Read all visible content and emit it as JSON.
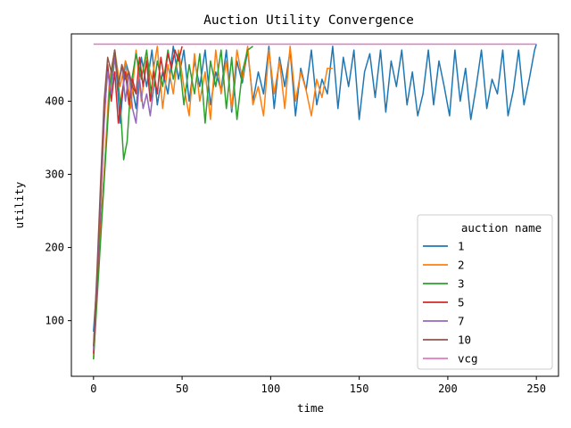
{
  "chart_data": {
    "type": "line",
    "title": "Auction Utility Convergence",
    "xlabel": "time",
    "ylabel": "utility",
    "xlim": [
      -12.5,
      262.5
    ],
    "ylim": [
      24,
      492
    ],
    "x_ticks": [
      0,
      50,
      100,
      150,
      200,
      250
    ],
    "y_ticks": [
      100,
      200,
      300,
      400
    ],
    "grid": false,
    "legend_title": "auction name",
    "legend_position": "lower right",
    "series": [
      {
        "name": "1",
        "color": "#1f77b4",
        "x": [
          0,
          3,
          6,
          9,
          12,
          15,
          18,
          21,
          24,
          27,
          30,
          33,
          36,
          39,
          42,
          45,
          48,
          51,
          54,
          57,
          60,
          63,
          66,
          69,
          72,
          75,
          78,
          81,
          84,
          87,
          90,
          93,
          96,
          99,
          102,
          105,
          108,
          111,
          114,
          117,
          120,
          123,
          126,
          129,
          132,
          135,
          138,
          141,
          144,
          147,
          150,
          153,
          156,
          159,
          162,
          165,
          168,
          171,
          174,
          177,
          180,
          183,
          186,
          189,
          192,
          195,
          198,
          201,
          204,
          207,
          210,
          213,
          216,
          219,
          222,
          225,
          228,
          231,
          234,
          237,
          240,
          243,
          246,
          249,
          250
        ],
        "y": [
          85,
          190,
          300,
          420,
          470,
          370,
          455,
          430,
          390,
          460,
          420,
          470,
          395,
          440,
          410,
          475,
          430,
          470,
          400,
          455,
          420,
          470,
          395,
          440,
          415,
          470,
          385,
          455,
          425,
          470,
          400,
          440,
          410,
          475,
          390,
          460,
          420,
          470,
          380,
          445,
          415,
          470,
          395,
          430,
          410,
          475,
          390,
          460,
          420,
          470,
          375,
          440,
          465,
          405,
          470,
          385,
          455,
          420,
          470,
          395,
          440,
          380,
          410,
          470,
          395,
          455,
          420,
          380,
          470,
          400,
          445,
          375,
          420,
          470,
          390,
          430,
          410,
          470,
          380,
          415,
          470,
          395,
          430,
          470,
          478
        ]
      },
      {
        "name": "2",
        "color": "#ff7f0e",
        "x": [
          0,
          3,
          6,
          9,
          12,
          15,
          18,
          21,
          24,
          27,
          30,
          33,
          36,
          39,
          42,
          45,
          48,
          51,
          54,
          57,
          60,
          63,
          66,
          69,
          72,
          75,
          78,
          81,
          84,
          87,
          90,
          93,
          96,
          99,
          102,
          105,
          108,
          111,
          114,
          117,
          120,
          123,
          126,
          129,
          132,
          135
        ],
        "y": [
          48,
          180,
          300,
          430,
          470,
          420,
          455,
          390,
          470,
          400,
          460,
          430,
          475,
          390,
          450,
          410,
          470,
          420,
          380,
          465,
          400,
          440,
          375,
          470,
          410,
          455,
          390,
          470,
          430,
          475,
          395,
          420,
          380,
          470,
          410,
          455,
          390,
          475,
          400,
          440,
          415,
          380,
          430,
          405,
          445,
          445
        ]
      },
      {
        "name": "3",
        "color": "#2ca02c",
        "x": [
          0,
          3,
          6,
          9,
          12,
          15,
          17,
          19,
          21,
          24,
          27,
          30,
          33,
          36,
          39,
          42,
          45,
          48,
          51,
          54,
          57,
          60,
          63,
          66,
          69,
          72,
          75,
          78,
          81,
          84,
          87,
          90
        ],
        "y": [
          47,
          170,
          290,
          410,
          470,
          400,
          320,
          345,
          420,
          465,
          430,
          470,
          400,
          455,
          420,
          470,
          430,
          465,
          395,
          450,
          410,
          465,
          370,
          455,
          420,
          470,
          390,
          460,
          375,
          440,
          470,
          475
        ]
      },
      {
        "name": "5",
        "color": "#d62728",
        "x": [
          0,
          2,
          4,
          6,
          8,
          10,
          12,
          14,
          16,
          18,
          20,
          22,
          24,
          26,
          28,
          30,
          32,
          34,
          36,
          38,
          40,
          42,
          44,
          46,
          48,
          50
        ],
        "y": [
          55,
          150,
          260,
          370,
          450,
          400,
          440,
          370,
          410,
          440,
          395,
          430,
          410,
          460,
          420,
          455,
          400,
          440,
          410,
          460,
          430,
          465,
          445,
          470,
          455,
          475
        ]
      },
      {
        "name": "7",
        "color": "#9467bd",
        "x": [
          0,
          2,
          4,
          6,
          8,
          10,
          12,
          14,
          16,
          18,
          20,
          22,
          24,
          26,
          28,
          30,
          32,
          34
        ],
        "y": [
          60,
          160,
          270,
          380,
          440,
          410,
          460,
          420,
          450,
          400,
          440,
          390,
          370,
          430,
          390,
          410,
          380,
          420
        ]
      },
      {
        "name": "10",
        "color": "#8c564b",
        "x": [
          0,
          2,
          4,
          6,
          8,
          10,
          12,
          14,
          16,
          18,
          20,
          22,
          24
        ],
        "y": [
          65,
          170,
          290,
          400,
          460,
          440,
          470,
          420,
          450,
          430,
          440,
          420,
          410
        ]
      },
      {
        "name": "vcg",
        "color": "#e377c2",
        "x": [
          0,
          250
        ],
        "y": [
          478,
          478
        ]
      }
    ]
  }
}
